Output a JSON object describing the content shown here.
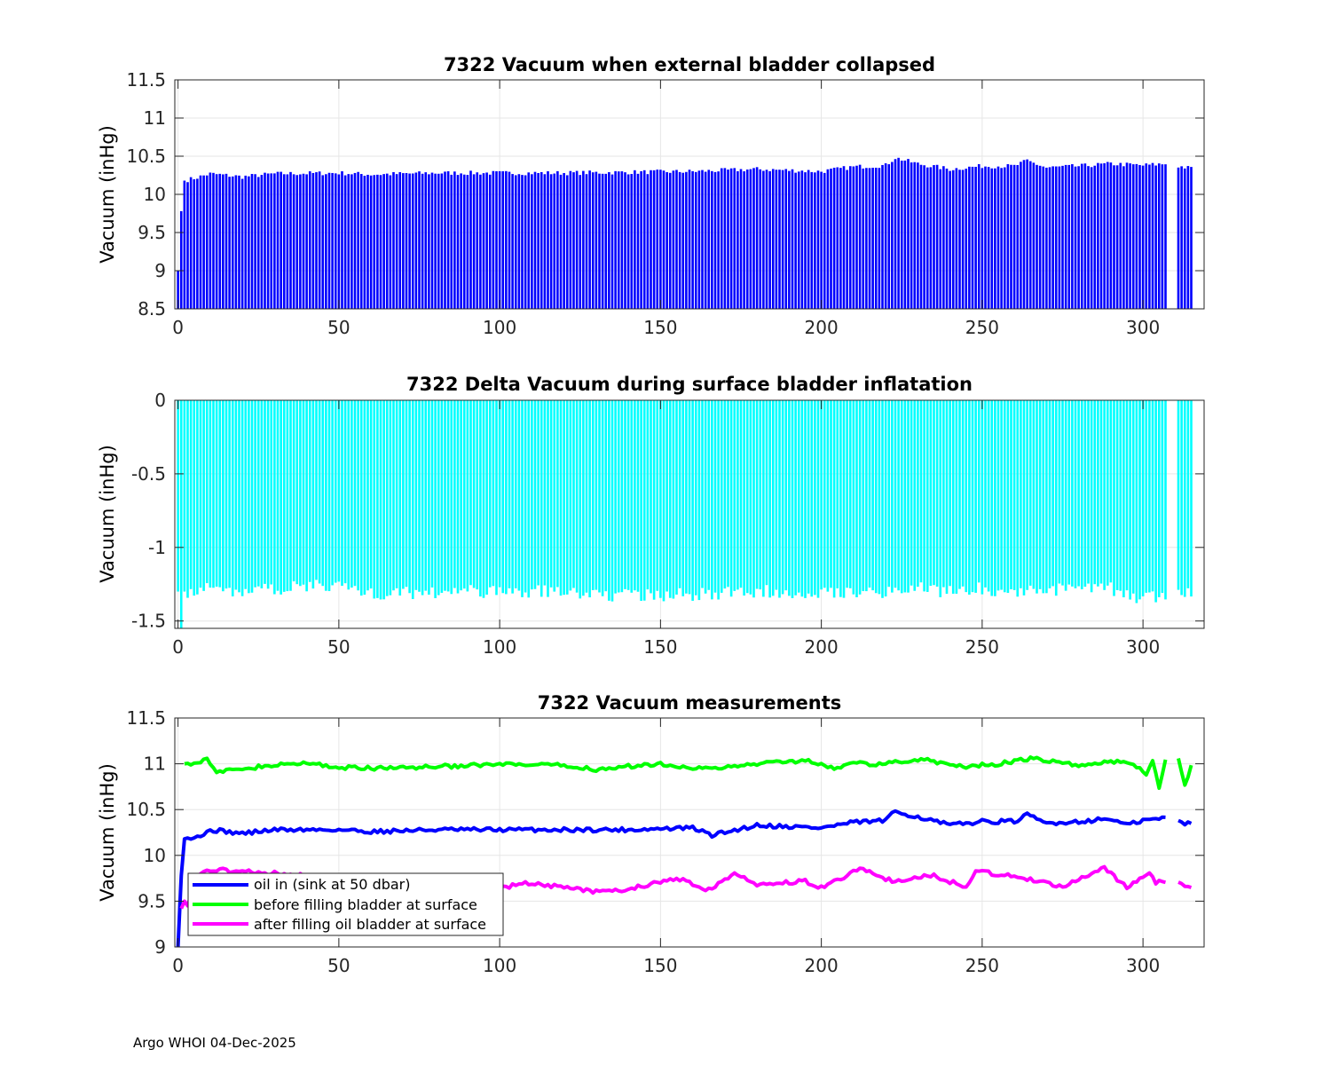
{
  "footer": "Argo WHOI 04-Dec-2025",
  "colors": {
    "blue": "#0000ff",
    "green": "#00ff00",
    "magenta": "#ff00ff",
    "cyan": "#00ffff"
  },
  "chart_data": [
    {
      "type": "bar",
      "title": "7322 Vacuum when external bladder collapsed",
      "xlabel": "",
      "ylabel": "Vacuum (inHg)",
      "xlim": [
        -1,
        319
      ],
      "ylim": [
        8.5,
        11.5
      ],
      "xticks": [
        0,
        50,
        100,
        150,
        200,
        250,
        300
      ],
      "yticks": [
        8.5,
        9,
        9.5,
        10,
        10.5,
        11,
        11.5
      ],
      "ytick_labels": [
        "8.5",
        "9",
        "9.5",
        "10",
        "10.5",
        "11",
        "11.5"
      ],
      "grid": true,
      "color": "#0000ff",
      "gaps": [
        308,
        309,
        310
      ],
      "anchors": [
        [
          0,
          9.0
        ],
        [
          1,
          9.78
        ],
        [
          2,
          10.18
        ],
        [
          5,
          10.21
        ],
        [
          10,
          10.27
        ],
        [
          20,
          10.23
        ],
        [
          30,
          10.27
        ],
        [
          50,
          10.28
        ],
        [
          60,
          10.26
        ],
        [
          80,
          10.28
        ],
        [
          100,
          10.28
        ],
        [
          120,
          10.28
        ],
        [
          140,
          10.29
        ],
        [
          160,
          10.3
        ],
        [
          180,
          10.33
        ],
        [
          200,
          10.3
        ],
        [
          210,
          10.36
        ],
        [
          220,
          10.38
        ],
        [
          223,
          10.48
        ],
        [
          230,
          10.4
        ],
        [
          240,
          10.33
        ],
        [
          250,
          10.37
        ],
        [
          260,
          10.37
        ],
        [
          264,
          10.44
        ],
        [
          270,
          10.35
        ],
        [
          280,
          10.37
        ],
        [
          290,
          10.4
        ],
        [
          300,
          10.38
        ],
        [
          307,
          10.4
        ],
        [
          311,
          10.37
        ],
        [
          315,
          10.34
        ]
      ]
    },
    {
      "type": "bar",
      "title": "7322 Delta Vacuum during surface bladder inflatation",
      "xlabel": "",
      "ylabel": "Vacuum (inHg)",
      "xlim": [
        -1,
        319
      ],
      "ylim": [
        -1.55,
        0
      ],
      "xticks": [
        0,
        50,
        100,
        150,
        200,
        250,
        300
      ],
      "yticks": [
        -1.5,
        -1,
        -0.5,
        0
      ],
      "ytick_labels": [
        "-1.5",
        "-1",
        "-0.5",
        "0"
      ],
      "grid": true,
      "color": "#00ffff",
      "gaps": [
        308,
        309,
        310
      ],
      "anchors": [
        [
          0,
          -1.3
        ],
        [
          1,
          -1.55
        ],
        [
          2,
          -1.3
        ],
        [
          10,
          -1.28
        ],
        [
          20,
          -1.3
        ],
        [
          30,
          -1.28
        ],
        [
          50,
          -1.25
        ],
        [
          60,
          -1.32
        ],
        [
          80,
          -1.3
        ],
        [
          100,
          -1.3
        ],
        [
          120,
          -1.3
        ],
        [
          140,
          -1.33
        ],
        [
          160,
          -1.32
        ],
        [
          180,
          -1.3
        ],
        [
          200,
          -1.3
        ],
        [
          210,
          -1.3
        ],
        [
          220,
          -1.3
        ],
        [
          230,
          -1.28
        ],
        [
          240,
          -1.3
        ],
        [
          250,
          -1.28
        ],
        [
          260,
          -1.3
        ],
        [
          280,
          -1.28
        ],
        [
          290,
          -1.28
        ],
        [
          300,
          -1.35
        ],
        [
          307,
          -1.32
        ],
        [
          311,
          -1.33
        ],
        [
          315,
          -1.32
        ]
      ]
    },
    {
      "type": "line",
      "title": "7322 Vacuum measurements",
      "xlabel": "",
      "ylabel": "Vacuum (inHg)",
      "xlim": [
        -1,
        319
      ],
      "ylim": [
        9,
        11.5
      ],
      "xticks": [
        0,
        50,
        100,
        150,
        200,
        250,
        300
      ],
      "yticks": [
        9,
        9.5,
        10,
        10.5,
        11,
        11.5
      ],
      "ytick_labels": [
        "9",
        "9.5",
        "10",
        "10.5",
        "11",
        "11.5"
      ],
      "grid": true,
      "legend_position": "bottom-left",
      "series": [
        {
          "name": "oil in (sink at 50 dbar)",
          "color": "#0000ff",
          "anchors": [
            [
              0,
              9.0
            ],
            [
              1,
              9.78
            ],
            [
              2,
              10.18
            ],
            [
              5,
              10.21
            ],
            [
              8,
              10.22
            ],
            [
              10,
              10.28
            ],
            [
              20,
              10.24
            ],
            [
              30,
              10.28
            ],
            [
              50,
              10.28
            ],
            [
              60,
              10.26
            ],
            [
              80,
              10.28
            ],
            [
              100,
              10.28
            ],
            [
              120,
              10.28
            ],
            [
              140,
              10.28
            ],
            [
              160,
              10.3
            ],
            [
              166,
              10.22
            ],
            [
              180,
              10.33
            ],
            [
              200,
              10.3
            ],
            [
              210,
              10.36
            ],
            [
              220,
              10.38
            ],
            [
              223,
              10.48
            ],
            [
              230,
              10.42
            ],
            [
              240,
              10.33
            ],
            [
              250,
              10.37
            ],
            [
              260,
              10.37
            ],
            [
              264,
              10.44
            ],
            [
              270,
              10.35
            ],
            [
              280,
              10.37
            ],
            [
              290,
              10.4
            ],
            [
              295,
              10.33
            ],
            [
              300,
              10.38
            ],
            [
              307,
              10.41
            ],
            [
              311,
              10.37
            ],
            [
              315,
              10.34
            ]
          ]
        },
        {
          "name": "before filling bladder at surface",
          "color": "#00ff00",
          "anchors": [
            [
              2,
              11.0
            ],
            [
              6,
              11.02
            ],
            [
              9,
              11.06
            ],
            [
              12,
              10.9
            ],
            [
              20,
              10.95
            ],
            [
              40,
              11.01
            ],
            [
              50,
              10.96
            ],
            [
              60,
              10.95
            ],
            [
              80,
              10.97
            ],
            [
              100,
              10.99
            ],
            [
              120,
              10.98
            ],
            [
              130,
              10.94
            ],
            [
              140,
              10.97
            ],
            [
              150,
              11.0
            ],
            [
              165,
              10.94
            ],
            [
              180,
              11.0
            ],
            [
              195,
              11.04
            ],
            [
              205,
              10.95
            ],
            [
              210,
              11.0
            ],
            [
              220,
              11.0
            ],
            [
              230,
              11.05
            ],
            [
              245,
              10.97
            ],
            [
              255,
              11.0
            ],
            [
              265,
              11.06
            ],
            [
              280,
              10.98
            ],
            [
              290,
              11.03
            ],
            [
              297,
              11.0
            ],
            [
              301,
              10.88
            ],
            [
              303,
              11.05
            ],
            [
              305,
              10.75
            ],
            [
              307,
              11.05
            ],
            [
              311,
              11.05
            ],
            [
              313,
              10.75
            ],
            [
              315,
              10.98
            ]
          ]
        },
        {
          "name": "after filling oil bladder at surface",
          "color": "#ff00ff",
          "anchors": [
            [
              1,
              9.42
            ],
            [
              2,
              9.5
            ],
            [
              3,
              9.45
            ],
            [
              5,
              9.72
            ],
            [
              9,
              9.85
            ],
            [
              100,
              9.65
            ],
            [
              110,
              9.7
            ],
            [
              130,
              9.6
            ],
            [
              140,
              9.63
            ],
            [
              155,
              9.75
            ],
            [
              165,
              9.62
            ],
            [
              173,
              9.8
            ],
            [
              180,
              9.67
            ],
            [
              195,
              9.72
            ],
            [
              200,
              9.65
            ],
            [
              212,
              9.85
            ],
            [
              222,
              9.72
            ],
            [
              235,
              9.78
            ],
            [
              245,
              9.65
            ],
            [
              248,
              9.82
            ],
            [
              260,
              9.78
            ],
            [
              275,
              9.65
            ],
            [
              288,
              9.86
            ],
            [
              295,
              9.65
            ],
            [
              302,
              9.82
            ],
            [
              304,
              9.7
            ],
            [
              307,
              9.72
            ],
            [
              311,
              9.7
            ],
            [
              313,
              9.65
            ],
            [
              315,
              9.65
            ]
          ]
        }
      ]
    }
  ]
}
